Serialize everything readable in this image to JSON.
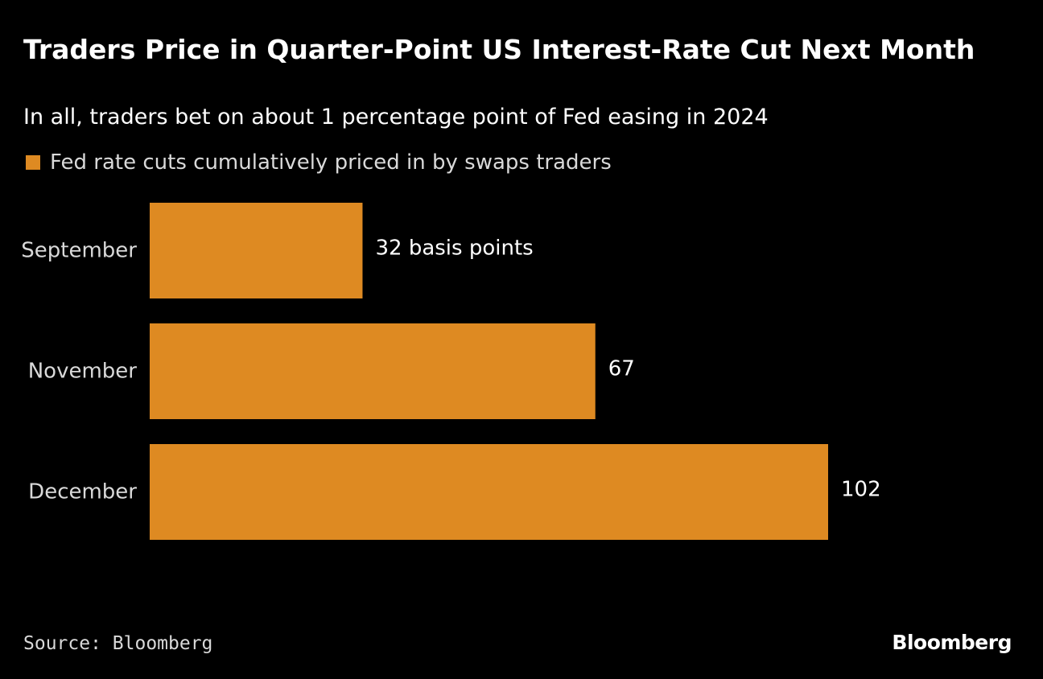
{
  "header": {
    "title": "Traders Price in Quarter-Point US Interest-Rate Cut Next Month",
    "subtitle": "In all, traders bet on about 1 percentage point of Fed easing in 2024"
  },
  "legend": {
    "label": "Fed rate cuts cumulatively priced in by swaps traders",
    "color": "#DE8A22"
  },
  "chart_data": {
    "type": "bar",
    "orientation": "horizontal",
    "categories": [
      "September",
      "November",
      "December"
    ],
    "series": [
      {
        "name": "Fed rate cuts cumulatively priced in by swaps traders",
        "values": [
          32,
          67,
          102
        ],
        "color": "#DE8A22"
      }
    ],
    "data_labels": [
      "32 basis points",
      "67",
      "102"
    ],
    "xlim": [
      0,
      102
    ],
    "grid": false,
    "legend_position": "top-left"
  },
  "footer": {
    "source": "Source: Bloomberg",
    "brand": "Bloomberg"
  },
  "colors": {
    "background": "#000000",
    "text": "#FFFFFF",
    "muted_text": "#D9D9D9",
    "bar": "#DE8A22"
  }
}
